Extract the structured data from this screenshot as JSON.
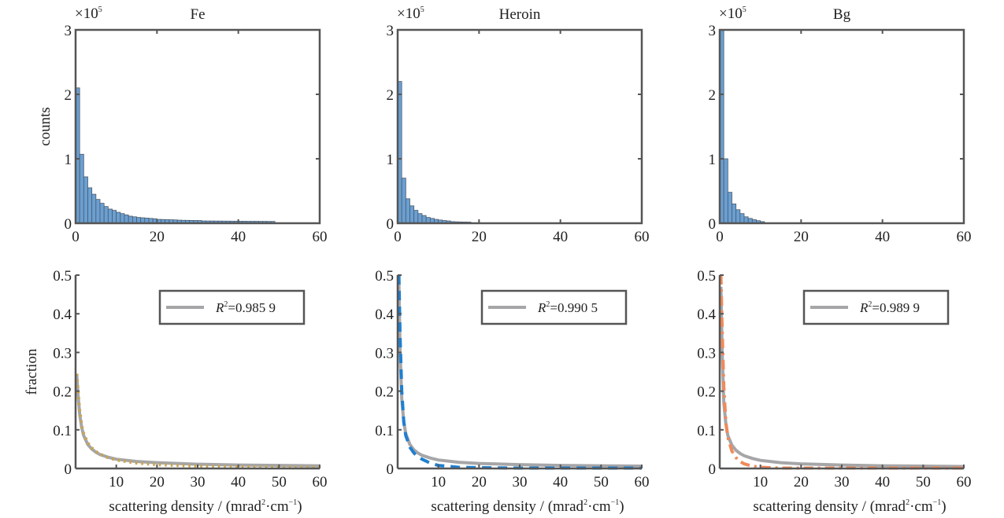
{
  "chart_data": [
    {
      "type": "bar",
      "title": "Fe",
      "ylabel": "counts",
      "xlabel": "",
      "y_multiplier": "×10",
      "y_multiplier_exp": "5",
      "xlim": [
        0,
        60
      ],
      "ylim": [
        0,
        3
      ],
      "xticks": [
        "0",
        "20",
        "40",
        "60"
      ],
      "yticks": [
        "0",
        "1",
        "2",
        "3"
      ],
      "bin_width": 1,
      "values": [
        2.1,
        1.07,
        0.72,
        0.55,
        0.45,
        0.37,
        0.31,
        0.26,
        0.22,
        0.2,
        0.17,
        0.15,
        0.13,
        0.11,
        0.1,
        0.09,
        0.085,
        0.08,
        0.075,
        0.07,
        0.06,
        0.058,
        0.056,
        0.054,
        0.052,
        0.048,
        0.046,
        0.045,
        0.044,
        0.043,
        0.042,
        0.036,
        0.035,
        0.035,
        0.034,
        0.034,
        0.033,
        0.033,
        0.032,
        0.032,
        0.031,
        0.031,
        0.03,
        0.03,
        0.03,
        0.029,
        0.029,
        0.028,
        0.028
      ]
    },
    {
      "type": "bar",
      "title": "Heroin",
      "ylabel": "",
      "xlabel": "",
      "y_multiplier": "×10",
      "y_multiplier_exp": "5",
      "xlim": [
        0,
        60
      ],
      "ylim": [
        0,
        3
      ],
      "xticks": [
        "0",
        "20",
        "40",
        "60"
      ],
      "yticks": [
        "0",
        "1",
        "2",
        "3"
      ],
      "bin_width": 1,
      "values": [
        2.2,
        0.7,
        0.38,
        0.27,
        0.2,
        0.15,
        0.12,
        0.09,
        0.075,
        0.06,
        0.05,
        0.042,
        0.036,
        0.025,
        0.022,
        0.02,
        0.019,
        0.018
      ]
    },
    {
      "type": "bar",
      "title": "Bg",
      "ylabel": "",
      "xlabel": "",
      "y_multiplier": "×10",
      "y_multiplier_exp": "5",
      "xlim": [
        0,
        60
      ],
      "ylim": [
        0,
        3
      ],
      "xticks": [
        "0",
        "20",
        "40",
        "60"
      ],
      "yticks": [
        "0",
        "1",
        "2",
        "3"
      ],
      "bin_width": 1,
      "values": [
        3.0,
        1.0,
        0.48,
        0.3,
        0.21,
        0.15,
        0.1,
        0.075,
        0.055,
        0.04,
        0.025
      ]
    },
    {
      "type": "line",
      "title": "",
      "ylabel": "fraction",
      "xlabel": "scattering density / (mrad",
      "xlabel_sup1": "2",
      "xlabel_mid": "·cm",
      "xlabel_sup2": "−1",
      "xlabel_end": ")",
      "xlim": [
        0,
        60
      ],
      "ylim": [
        0,
        0.5
      ],
      "xticks": [
        "10",
        "20",
        "30",
        "40",
        "50",
        "60"
      ],
      "yticks": [
        "0",
        "0.1",
        "0.2",
        "0.3",
        "0.4",
        "0.5"
      ],
      "legend": {
        "label_prefix": "R",
        "label_sup": "2",
        "label_value": "=0.985 9",
        "location": "top-right"
      },
      "series": [
        {
          "name": "fit",
          "style": "solid",
          "color": "#a6a6a8",
          "x": [
            0.3,
            0.6,
            1,
            1.5,
            2,
            3,
            4,
            5,
            6,
            8,
            10,
            15,
            20,
            30,
            40,
            50,
            60
          ],
          "y": [
            0.24,
            0.19,
            0.14,
            0.105,
            0.085,
            0.062,
            0.05,
            0.042,
            0.036,
            0.029,
            0.024,
            0.018,
            0.015,
            0.011,
            0.009,
            0.008,
            0.007
          ]
        },
        {
          "name": "data",
          "style": "dotted",
          "color": "#c9a44e",
          "x": [
            0.3,
            0.6,
            1,
            1.5,
            2,
            3,
            4,
            5,
            6,
            8,
            10,
            15,
            20,
            30,
            40,
            50,
            60
          ],
          "y": [
            0.245,
            0.2,
            0.15,
            0.11,
            0.09,
            0.066,
            0.053,
            0.044,
            0.037,
            0.028,
            0.022,
            0.014,
            0.01,
            0.006,
            0.004,
            0.003,
            0.003
          ]
        }
      ]
    },
    {
      "type": "line",
      "title": "",
      "ylabel": "",
      "xlabel": "scattering density / (mrad",
      "xlabel_sup1": "2",
      "xlabel_mid": "·cm",
      "xlabel_sup2": "−1",
      "xlabel_end": ")",
      "xlim": [
        0,
        60
      ],
      "ylim": [
        0,
        0.5
      ],
      "xticks": [
        "10",
        "20",
        "30",
        "40",
        "50",
        "60"
      ],
      "yticks": [
        "0",
        "0.1",
        "0.2",
        "0.3",
        "0.4",
        "0.5"
      ],
      "legend": {
        "label_prefix": "R",
        "label_sup": "2",
        "label_value": "=0.990 5",
        "location": "top-right"
      },
      "series": [
        {
          "name": "fit",
          "style": "solid",
          "color": "#a6a6a8",
          "x": [
            0.3,
            0.6,
            1,
            1.5,
            2,
            3,
            4,
            5,
            6,
            8,
            10,
            15,
            20,
            30,
            40,
            50,
            60
          ],
          "y": [
            0.48,
            0.3,
            0.18,
            0.12,
            0.09,
            0.062,
            0.048,
            0.04,
            0.034,
            0.027,
            0.022,
            0.016,
            0.013,
            0.01,
            0.008,
            0.007,
            0.006
          ]
        },
        {
          "name": "data",
          "style": "dashed",
          "color": "#1f7fd0",
          "x": [
            0.3,
            0.6,
            1,
            1.5,
            2,
            3,
            4,
            5,
            6,
            8,
            10,
            15,
            20,
            30,
            40,
            50,
            60
          ],
          "y": [
            0.5,
            0.34,
            0.2,
            0.12,
            0.085,
            0.055,
            0.04,
            0.03,
            0.024,
            0.014,
            0.008,
            0.003,
            0.002,
            0.001,
            0.001,
            0.001,
            0.001
          ]
        }
      ]
    },
    {
      "type": "line",
      "title": "",
      "ylabel": "",
      "xlabel": "scattering density / (mrad",
      "xlabel_sup1": "2",
      "xlabel_mid": "·cm",
      "xlabel_sup2": "−1",
      "xlabel_end": ")",
      "xlim": [
        0,
        60
      ],
      "ylim": [
        0,
        0.5
      ],
      "xticks": [
        "10",
        "20",
        "30",
        "40",
        "50",
        "60"
      ],
      "yticks": [
        "0",
        "0.1",
        "0.2",
        "0.3",
        "0.4",
        "0.5"
      ],
      "legend": {
        "label_prefix": "R",
        "label_sup": "2",
        "label_value": "=0.989 9",
        "location": "top-right"
      },
      "series": [
        {
          "name": "fit",
          "style": "solid",
          "color": "#a6a6a8",
          "x": [
            0.3,
            0.6,
            1,
            1.5,
            2,
            3,
            4,
            5,
            6,
            8,
            10,
            15,
            20,
            30,
            40,
            50,
            60
          ],
          "y": [
            0.47,
            0.3,
            0.17,
            0.115,
            0.085,
            0.06,
            0.047,
            0.039,
            0.033,
            0.026,
            0.021,
            0.015,
            0.012,
            0.009,
            0.007,
            0.006,
            0.005
          ]
        },
        {
          "name": "data",
          "style": "dashdot",
          "color": "#f08a5a",
          "x": [
            0.3,
            0.6,
            1,
            1.5,
            2,
            3,
            4,
            5,
            6,
            8,
            10,
            15,
            20,
            30,
            40,
            50,
            60
          ],
          "y": [
            0.5,
            0.36,
            0.21,
            0.12,
            0.08,
            0.045,
            0.028,
            0.018,
            0.012,
            0.006,
            0.003,
            0.001,
            0.001,
            0.001,
            0.001,
            0.001,
            0.001
          ]
        }
      ]
    }
  ],
  "colors": {
    "bar_fill": "#6a9fd2",
    "bar_edge": "#4d5a6a",
    "axis": "#555555"
  }
}
